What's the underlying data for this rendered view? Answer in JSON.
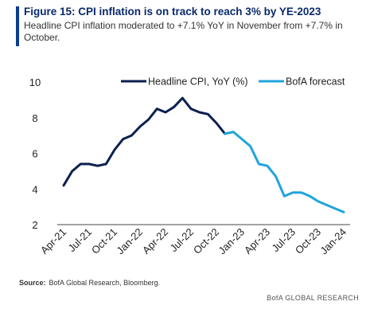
{
  "header": {
    "title": "Figure 15: CPI inflation is on track to reach 3% by YE-2023",
    "subtitle": "Headline CPI inflation moderated to +7.1% YoY in November from +7.7% in October."
  },
  "footer": {
    "source_label": "Source:",
    "source_text": "BofA Global Research, Bloomberg.",
    "brand": "BofA GLOBAL RESEARCH"
  },
  "colors": {
    "accent": "#0a3d91",
    "actual": "#0b1f4f",
    "forecast": "#20a4dc",
    "title": "#0a2a6b"
  },
  "chart_data": {
    "type": "line",
    "ylim": [
      2,
      10
    ],
    "y_ticks": [
      2,
      4,
      6,
      8,
      10
    ],
    "x_ticks": [
      {
        "label": "Apr-21",
        "x": 0
      },
      {
        "label": "Jul-21",
        "x": 3
      },
      {
        "label": "Oct-21",
        "x": 6
      },
      {
        "label": "Jan-22",
        "x": 9
      },
      {
        "label": "Apr-22",
        "x": 12
      },
      {
        "label": "Jul-22",
        "x": 15
      },
      {
        "label": "Oct-22",
        "x": 18
      },
      {
        "label": "Jan-23",
        "x": 21
      },
      {
        "label": "Apr-23",
        "x": 24
      },
      {
        "label": "Jul-23",
        "x": 27
      },
      {
        "label": "Oct-23",
        "x": 30
      },
      {
        "label": "Jan-24",
        "x": 33
      }
    ],
    "legend_position": "top",
    "series": [
      {
        "name": "Headline CPI, YoY (%)",
        "color": "#0b1f4f",
        "points": [
          {
            "x": 0,
            "y": 4.2
          },
          {
            "x": 1,
            "y": 5.0
          },
          {
            "x": 2,
            "y": 5.4
          },
          {
            "x": 3,
            "y": 5.4
          },
          {
            "x": 4,
            "y": 5.3
          },
          {
            "x": 5,
            "y": 5.4
          },
          {
            "x": 6,
            "y": 6.2
          },
          {
            "x": 7,
            "y": 6.8
          },
          {
            "x": 8,
            "y": 7.0
          },
          {
            "x": 9,
            "y": 7.5
          },
          {
            "x": 10,
            "y": 7.9
          },
          {
            "x": 11,
            "y": 8.5
          },
          {
            "x": 12,
            "y": 8.3
          },
          {
            "x": 13,
            "y": 8.6
          },
          {
            "x": 14,
            "y": 9.1
          },
          {
            "x": 15,
            "y": 8.5
          },
          {
            "x": 16,
            "y": 8.3
          },
          {
            "x": 17,
            "y": 8.2
          },
          {
            "x": 18,
            "y": 7.7
          },
          {
            "x": 19,
            "y": 7.1
          }
        ]
      },
      {
        "name": "BofA forecast",
        "color": "#20a4dc",
        "points": [
          {
            "x": 19,
            "y": 7.1
          },
          {
            "x": 20,
            "y": 7.2
          },
          {
            "x": 21,
            "y": 6.8
          },
          {
            "x": 22,
            "y": 6.4
          },
          {
            "x": 23,
            "y": 5.4
          },
          {
            "x": 24,
            "y": 5.3
          },
          {
            "x": 25,
            "y": 4.7
          },
          {
            "x": 26,
            "y": 3.6
          },
          {
            "x": 27,
            "y": 3.8
          },
          {
            "x": 28,
            "y": 3.8
          },
          {
            "x": 29,
            "y": 3.6
          },
          {
            "x": 30,
            "y": 3.3
          },
          {
            "x": 31,
            "y": 3.1
          },
          {
            "x": 32,
            "y": 2.9
          },
          {
            "x": 33,
            "y": 2.7
          }
        ]
      }
    ]
  }
}
